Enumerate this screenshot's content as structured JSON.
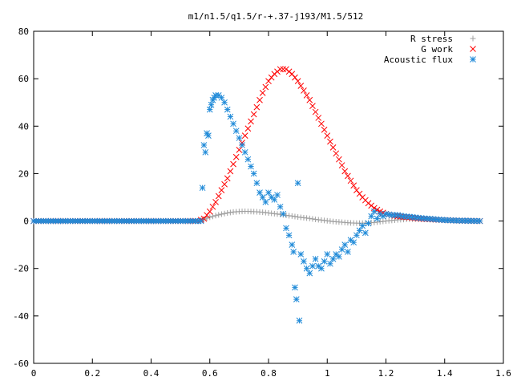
{
  "chart_data": {
    "type": "scatter",
    "title": "m1/n1.5/q1.5/r-+.37-j193/M1.5/512",
    "xlabel": "",
    "ylabel": "",
    "xlim": [
      0,
      1.6
    ],
    "ylim": [
      -60,
      80
    ],
    "x_ticks": [
      "0",
      "0.2",
      "0.4",
      "0.6",
      "0.8",
      "1",
      "1.2",
      "1.4",
      "1.6"
    ],
    "y_ticks": [
      "-60",
      "-40",
      "-20",
      "0",
      "20",
      "40",
      "60",
      "80"
    ],
    "grid": false,
    "legend_position": "top-right",
    "series": [
      {
        "name": "R stress",
        "marker": "plus",
        "color": "#a0a0a0",
        "points": [
          [
            0.0,
            0
          ],
          [
            0.1,
            0
          ],
          [
            0.2,
            0
          ],
          [
            0.3,
            0
          ],
          [
            0.4,
            0
          ],
          [
            0.5,
            0
          ],
          [
            0.56,
            0
          ],
          [
            0.58,
            0.8
          ],
          [
            0.6,
            1.6
          ],
          [
            0.62,
            2.3
          ],
          [
            0.64,
            2.9
          ],
          [
            0.66,
            3.4
          ],
          [
            0.68,
            3.8
          ],
          [
            0.7,
            4.0
          ],
          [
            0.72,
            4.1
          ],
          [
            0.74,
            4.0
          ],
          [
            0.76,
            3.9
          ],
          [
            0.78,
            3.7
          ],
          [
            0.8,
            3.4
          ],
          [
            0.82,
            3.1
          ],
          [
            0.84,
            2.8
          ],
          [
            0.86,
            2.4
          ],
          [
            0.88,
            2.1
          ],
          [
            0.9,
            1.7
          ],
          [
            0.92,
            1.4
          ],
          [
            0.94,
            1.1
          ],
          [
            0.96,
            0.7
          ],
          [
            0.98,
            0.4
          ],
          [
            1.0,
            0.1
          ],
          [
            1.02,
            -0.2
          ],
          [
            1.04,
            -0.4
          ],
          [
            1.06,
            -0.6
          ],
          [
            1.08,
            -0.8
          ],
          [
            1.1,
            -0.9
          ],
          [
            1.12,
            -0.9
          ],
          [
            1.14,
            -0.8
          ],
          [
            1.16,
            -0.6
          ],
          [
            1.18,
            -0.3
          ],
          [
            1.2,
            0.0
          ],
          [
            1.24,
            0.5
          ],
          [
            1.28,
            0.8
          ],
          [
            1.32,
            0.8
          ],
          [
            1.36,
            0.6
          ],
          [
            1.4,
            0.4
          ],
          [
            1.44,
            0.2
          ],
          [
            1.48,
            0.1
          ],
          [
            1.52,
            0
          ]
        ]
      },
      {
        "name": "G work",
        "marker": "cross",
        "color": "#ff0000",
        "points": [
          [
            0.0,
            0
          ],
          [
            0.1,
            0
          ],
          [
            0.2,
            0
          ],
          [
            0.3,
            0
          ],
          [
            0.4,
            0
          ],
          [
            0.5,
            0
          ],
          [
            0.56,
            0
          ],
          [
            0.58,
            1
          ],
          [
            0.6,
            4
          ],
          [
            0.62,
            8
          ],
          [
            0.64,
            13
          ],
          [
            0.66,
            18
          ],
          [
            0.68,
            24
          ],
          [
            0.7,
            30
          ],
          [
            0.72,
            36
          ],
          [
            0.74,
            42
          ],
          [
            0.76,
            48
          ],
          [
            0.78,
            54
          ],
          [
            0.8,
            59
          ],
          [
            0.82,
            62
          ],
          [
            0.84,
            64
          ],
          [
            0.86,
            64
          ],
          [
            0.88,
            62
          ],
          [
            0.9,
            59
          ],
          [
            0.92,
            55
          ],
          [
            0.94,
            51
          ],
          [
            0.96,
            46
          ],
          [
            0.98,
            41
          ],
          [
            1.0,
            36
          ],
          [
            1.02,
            31
          ],
          [
            1.04,
            26
          ],
          [
            1.06,
            21
          ],
          [
            1.08,
            17
          ],
          [
            1.1,
            13
          ],
          [
            1.12,
            10
          ],
          [
            1.14,
            7.5
          ],
          [
            1.16,
            5.5
          ],
          [
            1.18,
            4
          ],
          [
            1.2,
            3
          ],
          [
            1.24,
            2
          ],
          [
            1.28,
            1.5
          ],
          [
            1.32,
            1
          ],
          [
            1.36,
            0.7
          ],
          [
            1.4,
            0.4
          ],
          [
            1.44,
            0.2
          ],
          [
            1.48,
            0.1
          ],
          [
            1.52,
            0
          ]
        ]
      },
      {
        "name": "Acoustic flux",
        "marker": "star",
        "color": "#1f8ad8",
        "points": [
          [
            0.0,
            0
          ],
          [
            0.05,
            0
          ],
          [
            0.1,
            0
          ],
          [
            0.15,
            0
          ],
          [
            0.2,
            0
          ],
          [
            0.25,
            0
          ],
          [
            0.3,
            0
          ],
          [
            0.35,
            0
          ],
          [
            0.4,
            0
          ],
          [
            0.45,
            0
          ],
          [
            0.5,
            0
          ],
          [
            0.55,
            0
          ],
          [
            0.57,
            0
          ],
          [
            0.575,
            14
          ],
          [
            0.58,
            32
          ],
          [
            0.585,
            29
          ],
          [
            0.59,
            37
          ],
          [
            0.595,
            36
          ],
          [
            0.6,
            47
          ],
          [
            0.605,
            49
          ],
          [
            0.61,
            51
          ],
          [
            0.615,
            52
          ],
          [
            0.62,
            53
          ],
          [
            0.63,
            53
          ],
          [
            0.64,
            52
          ],
          [
            0.65,
            50
          ],
          [
            0.66,
            47
          ],
          [
            0.67,
            44
          ],
          [
            0.68,
            41
          ],
          [
            0.69,
            38
          ],
          [
            0.7,
            35
          ],
          [
            0.71,
            32
          ],
          [
            0.72,
            29
          ],
          [
            0.73,
            26
          ],
          [
            0.74,
            23
          ],
          [
            0.75,
            20
          ],
          [
            0.76,
            16
          ],
          [
            0.77,
            12
          ],
          [
            0.78,
            10
          ],
          [
            0.79,
            8
          ],
          [
            0.8,
            12
          ],
          [
            0.81,
            10
          ],
          [
            0.82,
            9
          ],
          [
            0.83,
            11
          ],
          [
            0.84,
            6
          ],
          [
            0.85,
            3
          ],
          [
            0.86,
            -3
          ],
          [
            0.87,
            -6
          ],
          [
            0.88,
            -10
          ],
          [
            0.885,
            -13
          ],
          [
            0.89,
            -28
          ],
          [
            0.895,
            -33
          ],
          [
            0.9,
            16
          ],
          [
            0.905,
            -42
          ],
          [
            0.91,
            -14
          ],
          [
            0.92,
            -17
          ],
          [
            0.93,
            -20
          ],
          [
            0.94,
            -22
          ],
          [
            0.95,
            -19
          ],
          [
            0.96,
            -16
          ],
          [
            0.97,
            -19
          ],
          [
            0.98,
            -20
          ],
          [
            0.99,
            -17
          ],
          [
            1.0,
            -14
          ],
          [
            1.01,
            -18
          ],
          [
            1.02,
            -16
          ],
          [
            1.03,
            -14
          ],
          [
            1.04,
            -15
          ],
          [
            1.05,
            -12
          ],
          [
            1.06,
            -10
          ],
          [
            1.07,
            -13
          ],
          [
            1.08,
            -8
          ],
          [
            1.09,
            -9
          ],
          [
            1.1,
            -6
          ],
          [
            1.11,
            -4
          ],
          [
            1.12,
            -2
          ],
          [
            1.13,
            -5
          ],
          [
            1.14,
            -1
          ],
          [
            1.15,
            2
          ],
          [
            1.16,
            4
          ],
          [
            1.17,
            1
          ],
          [
            1.18,
            3
          ],
          [
            1.19,
            2
          ],
          [
            1.2,
            3
          ],
          [
            1.22,
            2.5
          ],
          [
            1.24,
            2.5
          ],
          [
            1.26,
            2
          ],
          [
            1.28,
            1.8
          ],
          [
            1.3,
            1.5
          ],
          [
            1.32,
            1.2
          ],
          [
            1.34,
            1
          ],
          [
            1.36,
            0.8
          ],
          [
            1.38,
            0.6
          ],
          [
            1.4,
            0.4
          ],
          [
            1.44,
            0.2
          ],
          [
            1.48,
            0.1
          ],
          [
            1.52,
            0
          ]
        ]
      }
    ]
  }
}
